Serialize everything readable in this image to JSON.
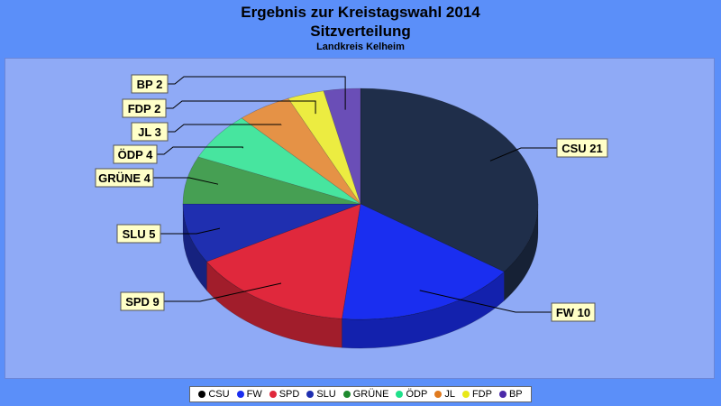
{
  "title": "Ergebnis zur Kreistagswahl 2014",
  "subtitle": "Sitzverteilung",
  "subsubtitle": "Landkreis Kelheim",
  "chart_data": {
    "type": "pie",
    "title": "Ergebnis zur Kreistagswahl 2014",
    "subtitle": "Sitzverteilung",
    "categories": [
      "CSU",
      "FW",
      "SPD",
      "SLU",
      "GRÜNE",
      "ÖDP",
      "JL",
      "FDP",
      "BP"
    ],
    "values": [
      21,
      10,
      9,
      5,
      4,
      4,
      3,
      2,
      2
    ],
    "labels": [
      "CSU 21",
      "FW 10",
      "SPD 9",
      "SLU 5",
      "GRÜNE 4",
      "ÖDP 4",
      "JL 3",
      "FDP 2",
      "BP 2"
    ],
    "colors": [
      "#1f2e4a",
      "#1a2ef0",
      "#e0283c",
      "#1f2fb0",
      "#1e8a2e",
      "#1fe08a",
      "#e07a1e",
      "#e8e818",
      "#4a28a8"
    ],
    "legend_placement": "bottom"
  }
}
